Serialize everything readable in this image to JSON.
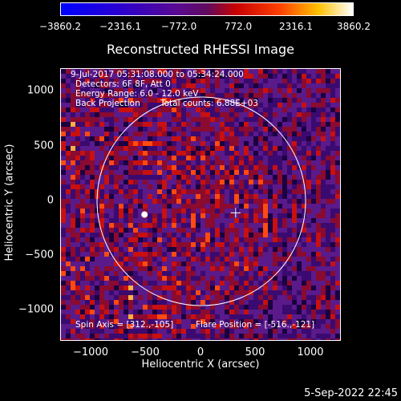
{
  "colorbar": {
    "labels": [
      "−3860.2",
      "−2316.1",
      "−772.0",
      "772.0",
      "2316.1",
      "3860.2"
    ],
    "colors": [
      "#0000ff",
      "#3a00c8",
      "#8b0070",
      "#ff2000",
      "#ffb000",
      "#ffffff"
    ]
  },
  "title": "Reconstructed RHESSI Image",
  "annotations": {
    "time": "9-Jul-2017 05:31:08.000 to 05:34:24.000",
    "detectors": "Detectors: 6F 8F, Att 0",
    "energy": "Energy Range: 6.0 - 12.0 keV",
    "method": "Back Projection",
    "counts": "Total counts: 6.88E+03",
    "spin_axis": "Spin Axis = [312.,-105]",
    "flare_position": "Flare Position = [-516.,-121]"
  },
  "axes": {
    "xlabel": "Heliocentric X (arcsec)",
    "ylabel": "Heliocentric Y (arcsec)",
    "xticks": [
      "−1000",
      "−500",
      "0",
      "500",
      "1000"
    ],
    "yticks": [
      "1000",
      "500",
      "0",
      "−500",
      "−1000"
    ]
  },
  "footer_date": "5-Sep-2022 22:45"
}
